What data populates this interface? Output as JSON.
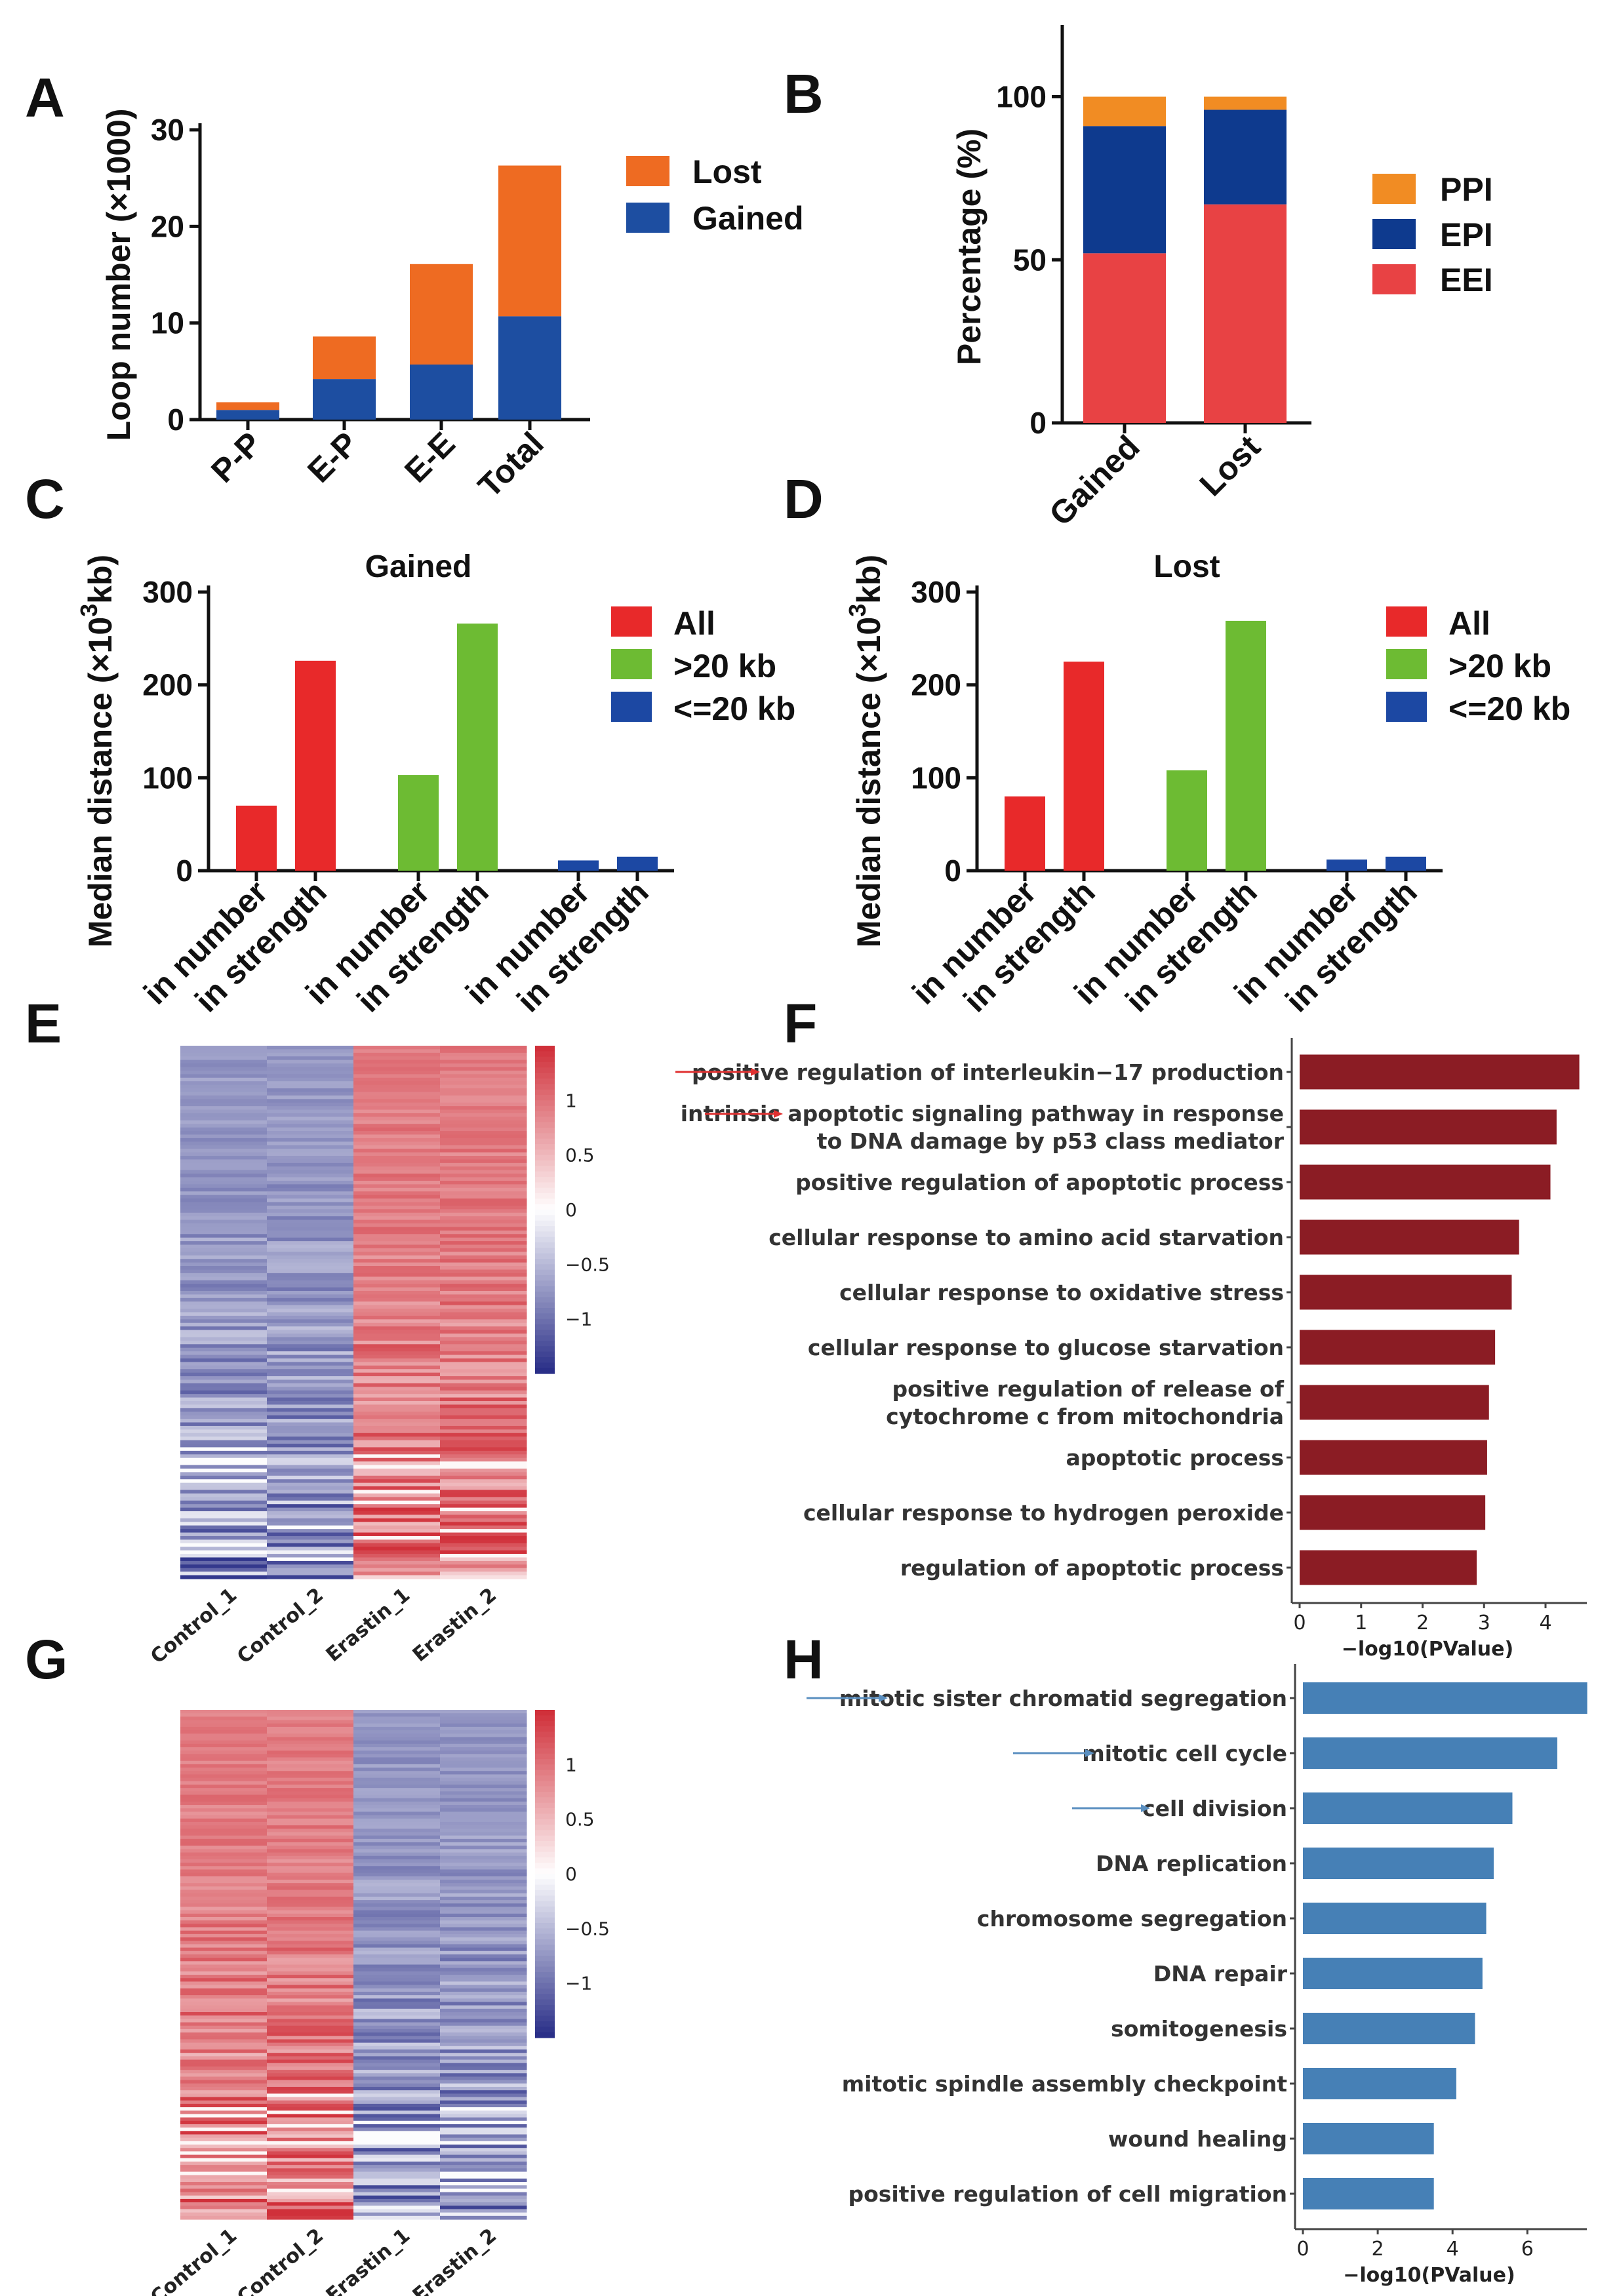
{
  "panels": {
    "A": "A",
    "B": "B",
    "C": "C",
    "D": "D",
    "E": "E",
    "F": "F",
    "G": "G",
    "H": "H"
  },
  "colors": {
    "lost_orange": "#EE6B22",
    "gained_blue": "#1D4EA1",
    "ppi": "#F18C23",
    "epi": "#0E3A8E",
    "eei": "#E84244",
    "all_red": "#E8292A",
    "gt20_green": "#6DBB33",
    "le20_blue": "#1C48A3",
    "go_up": "#8B1C24",
    "go_down": "#4680B6",
    "hm_red": "#D0303A",
    "hm_white": "#FFFFFF",
    "hm_blue": "#2A2F88",
    "arrow_red": "#E03030",
    "arrow_blue": "#5A8FC0"
  },
  "chart_data": [
    {
      "id": "A",
      "type": "bar",
      "stacked": true,
      "categories": [
        "P-P",
        "E-P",
        "E-E",
        "Total"
      ],
      "series": [
        {
          "name": "Gained",
          "values": [
            1.0,
            4.2,
            5.7,
            10.7
          ]
        },
        {
          "name": "Lost",
          "values": [
            0.8,
            4.4,
            10.4,
            15.6
          ]
        }
      ],
      "ylabel": "Loop number (×1000)",
      "ylim": [
        0,
        30
      ],
      "yticks": [
        "0",
        "10",
        "20",
        "30"
      ],
      "legend": [
        "Lost",
        "Gained"
      ]
    },
    {
      "id": "B",
      "type": "bar",
      "stacked": true,
      "categories": [
        "Gained",
        "Lost"
      ],
      "series": [
        {
          "name": "EEI",
          "values": [
            52,
            67
          ]
        },
        {
          "name": "EPI",
          "values": [
            39,
            29
          ]
        },
        {
          "name": "PPI",
          "values": [
            9,
            4
          ]
        }
      ],
      "ylabel": "Percentage (%)",
      "ylim": [
        0,
        120
      ],
      "yticks": [
        "0",
        "50",
        "100"
      ],
      "legend": [
        "PPI",
        "EPI",
        "EEI"
      ]
    },
    {
      "id": "C",
      "type": "bar",
      "title": "Gained",
      "ylabel_main": "Median distance (×10",
      "ylabel_sup": "3",
      "ylabel_end": "kb)",
      "ylim": [
        0,
        300
      ],
      "yticks": [
        "0",
        "100",
        "200",
        "300"
      ],
      "groups": [
        {
          "name": "All",
          "values": [
            70,
            226
          ]
        },
        {
          "name": ">20 kb",
          "values": [
            103,
            266
          ]
        },
        {
          "name": "<=20 kb",
          "values": [
            11,
            15
          ]
        }
      ],
      "xticks": [
        "in number",
        "in strength",
        "in number",
        "in strength",
        "in number",
        "in strength"
      ],
      "legend": [
        "All",
        ">20 kb",
        "<=20 kb"
      ]
    },
    {
      "id": "D",
      "type": "bar",
      "title": "Lost",
      "ylabel_main": "Median distance (×10",
      "ylabel_sup": "3",
      "ylabel_end": "kb)",
      "ylim": [
        0,
        300
      ],
      "yticks": [
        "0",
        "100",
        "200",
        "300"
      ],
      "groups": [
        {
          "name": "All",
          "values": [
            80,
            225
          ]
        },
        {
          "name": ">20 kb",
          "values": [
            108,
            269
          ]
        },
        {
          "name": "<=20 kb",
          "values": [
            12,
            15
          ]
        }
      ],
      "xticks": [
        "in number",
        "in strength",
        "in number",
        "in strength",
        "in number",
        "in strength"
      ],
      "legend": [
        "All",
        ">20 kb",
        "<=20 kb"
      ]
    },
    {
      "id": "E",
      "type": "heatmap",
      "columns": [
        "Control_1",
        "Control_2",
        "Erastin_1",
        "Erastin_2"
      ],
      "pattern": "down-then-up",
      "colorbar_ticks": [
        "1",
        "0.5",
        "0",
        "−0.5",
        "−1"
      ],
      "colorbar_values": [
        1,
        0.5,
        0,
        -0.5,
        -1
      ],
      "colorbar_range": [
        -1.5,
        1.5
      ]
    },
    {
      "id": "F",
      "type": "bar",
      "orientation": "horizontal",
      "terms": [
        [
          "positive regulation of interleukin−17 production"
        ],
        [
          "intrinsic apoptotic signaling pathway in response",
          "to DNA damage by p53 class mediator"
        ],
        [
          "positive regulation of apoptotic process"
        ],
        [
          "cellular response to amino acid starvation"
        ],
        [
          "cellular response to oxidative stress"
        ],
        [
          "cellular response to glucose starvation"
        ],
        [
          "positive regulation of release of",
          "cytochrome c from mitochondria"
        ],
        [
          "apoptotic process"
        ],
        [
          "cellular response to hydrogen peroxide"
        ],
        [
          "regulation of apoptotic process"
        ]
      ],
      "values": [
        4.55,
        4.18,
        4.08,
        3.57,
        3.45,
        3.18,
        3.08,
        3.05,
        3.02,
        2.88
      ],
      "arrows": [
        0,
        1
      ],
      "xlabel": "−log10(PValue)",
      "xlim": [
        0,
        4.8
      ],
      "xticks": [
        "0",
        "1",
        "2",
        "3",
        "4"
      ]
    },
    {
      "id": "G",
      "type": "heatmap",
      "columns": [
        "Control_1",
        "Control_2",
        "Erastin_1",
        "Erastin_2"
      ],
      "pattern": "up-then-down",
      "colorbar_ticks": [
        "1",
        "0.5",
        "0",
        "−0.5",
        "−1"
      ],
      "colorbar_values": [
        1,
        0.5,
        0,
        -0.5,
        -1
      ],
      "colorbar_range": [
        -1.5,
        1.5
      ]
    },
    {
      "id": "H",
      "type": "bar",
      "orientation": "horizontal",
      "terms": [
        [
          "mitotic sister chromatid segregation"
        ],
        [
          "mitotic cell cycle"
        ],
        [
          "cell division"
        ],
        [
          "DNA replication"
        ],
        [
          "chromosome segregation"
        ],
        [
          "DNA repair"
        ],
        [
          "somitogenesis"
        ],
        [
          "mitotic spindle assembly checkpoint"
        ],
        [
          "wound healing"
        ],
        [
          "positive regulation of cell migration"
        ]
      ],
      "values": [
        7.6,
        6.8,
        5.6,
        5.1,
        4.9,
        4.8,
        4.6,
        4.1,
        3.5,
        3.5
      ],
      "arrows": [
        0,
        1,
        2
      ],
      "xlabel": "−log10(PValue)",
      "xlim": [
        0,
        7.8
      ],
      "xticks": [
        "0",
        "2",
        "4",
        "6"
      ]
    }
  ]
}
